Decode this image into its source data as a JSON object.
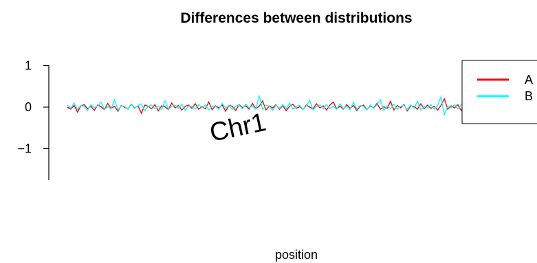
{
  "chart_data": {
    "type": "line",
    "title": "Differences between distributions",
    "xlabel": "position",
    "ylabel": "",
    "ylim": [
      -1.7,
      1.2
    ],
    "yticks": [
      1,
      0,
      -1
    ],
    "ytick_labels": [
      "1",
      "0",
      "−1"
    ],
    "grid": false,
    "legend_position": "top-right",
    "annotation": "Chr1",
    "series": [
      {
        "name": "A",
        "color": "#ff0000",
        "values": [
          0.0,
          -0.05,
          0.04,
          -0.12,
          0.03,
          0.06,
          -0.04,
          0.02,
          -0.08,
          0.05,
          0.01,
          -0.06,
          0.09,
          -0.03,
          0.02,
          -0.1,
          0.04,
          0.0,
          -0.05,
          0.07,
          -0.02,
          0.03,
          -0.15,
          0.05,
          0.02,
          -0.04,
          0.06,
          -0.09,
          0.03,
          0.01,
          -0.06,
          0.1,
          -0.02,
          0.04,
          -0.07,
          0.02,
          0.05,
          -0.03,
          0.08,
          -0.05,
          0.01,
          -0.04,
          0.12,
          -0.06,
          0.03,
          -0.02,
          0.05,
          -0.1,
          0.04,
          0.02,
          -0.08,
          0.06,
          -0.01,
          0.03,
          -0.05,
          0.09,
          -0.04,
          0.02,
          0.15,
          -0.07,
          0.03,
          -0.02,
          0.06,
          -0.05,
          0.04,
          -0.09,
          0.02,
          0.07,
          -0.03,
          0.01,
          -0.06,
          0.05,
          0.0,
          -0.04,
          0.08,
          -0.02,
          0.03,
          -0.07,
          0.05,
          0.12,
          -0.04,
          0.02,
          -0.05,
          0.06,
          -0.03,
          0.04,
          -0.08,
          0.02,
          0.05,
          -0.06,
          0.03,
          -0.02,
          0.09,
          -0.05,
          0.01,
          -0.03,
          0.14,
          -0.07,
          0.04,
          -0.02,
          0.06,
          -0.09,
          0.03,
          0.02,
          -0.05,
          0.08,
          -0.04,
          0.05,
          -0.03,
          0.02,
          -0.07,
          0.04,
          0.2,
          -0.05,
          0.03,
          -0.02,
          0.06,
          -0.08,
          0.04,
          0.01,
          -0.04,
          0.07,
          -0.06,
          0.03,
          -0.02
        ]
      },
      {
        "name": "B",
        "color": "#00ffff",
        "values": [
          0.05,
          -0.03,
          0.1,
          -0.06,
          0.04,
          0.02,
          -0.08,
          0.06,
          -0.02,
          0.03,
          0.12,
          -0.05,
          0.01,
          -0.04,
          0.18,
          -0.07,
          0.03,
          0.02,
          -0.05,
          0.06,
          -0.03,
          0.04,
          0.08,
          -0.09,
          0.02,
          0.05,
          -0.04,
          0.03,
          -0.06,
          0.15,
          -0.05,
          0.02,
          0.04,
          -0.03,
          0.07,
          -0.08,
          0.03,
          0.01,
          -0.04,
          0.06,
          -0.02,
          0.05,
          -0.07,
          0.03,
          0.02,
          -0.05,
          0.09,
          -0.03,
          0.04,
          -0.06,
          0.02,
          0.05,
          -0.04,
          0.07,
          -0.02,
          0.03,
          -0.05,
          0.28,
          -0.06,
          0.04,
          0.02,
          -0.08,
          0.05,
          -0.03,
          0.06,
          -0.04,
          0.1,
          -0.05,
          0.02,
          0.04,
          -0.06,
          0.03,
          0.16,
          -0.07,
          0.02,
          0.05,
          -0.04,
          0.06,
          -0.03,
          0.02,
          -0.05,
          0.08,
          -0.04,
          0.03,
          -0.06,
          0.12,
          -0.05,
          0.04,
          0.02,
          -0.07,
          0.05,
          -0.03,
          0.06,
          0.18,
          -0.08,
          0.03,
          -0.04,
          0.07,
          -0.05,
          0.02,
          0.04,
          -0.06,
          0.05,
          -0.03,
          0.14,
          -0.07,
          0.03,
          -0.02,
          0.06,
          -0.05,
          0.04,
          0.25,
          -0.18,
          0.03,
          -0.02,
          0.06,
          -0.04,
          0.05,
          0.12,
          -0.03,
          0.02,
          -0.05,
          0.07,
          -0.03,
          0.02
        ]
      }
    ]
  }
}
